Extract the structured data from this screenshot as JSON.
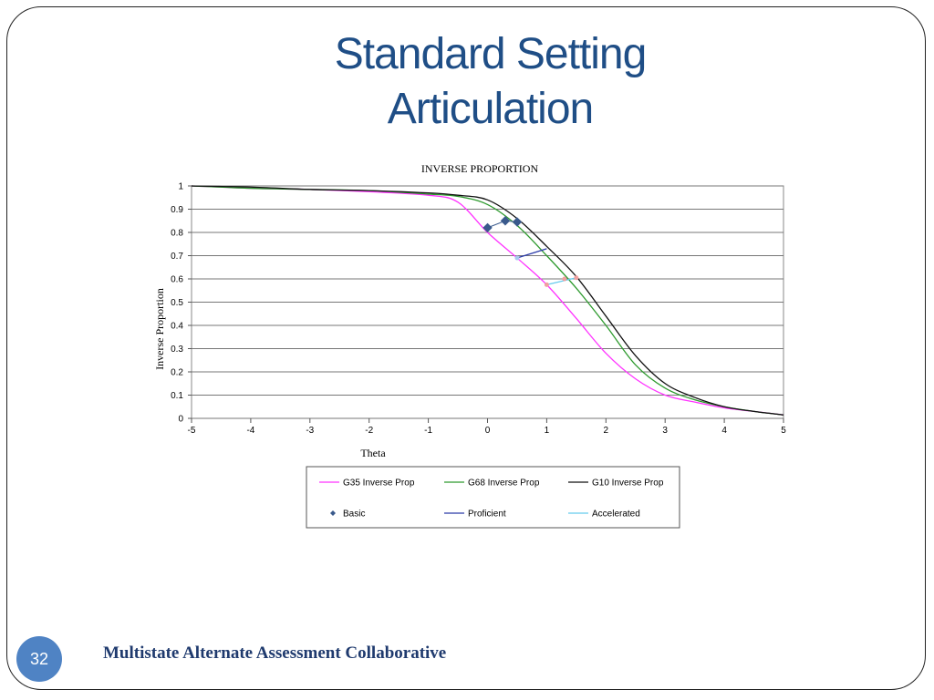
{
  "slide": {
    "title_line1": "Standard Setting",
    "title_line2": "Articulation",
    "page_number": "32",
    "footer": "Multistate Alternate Assessment Collaborative"
  },
  "colors": {
    "g35": "#ff33ff",
    "g68": "#2e9a2e",
    "g10": "#111111",
    "basic": "#3a5a8c",
    "proficient": "#2a3aa8",
    "accelerated": "#66ccee"
  },
  "chart_data": {
    "type": "line",
    "title": "INVERSE PROPORTION",
    "xlabel": "Theta",
    "ylabel": "Inverse Proportion",
    "xlim": [
      -5,
      5
    ],
    "ylim": [
      0,
      1
    ],
    "xticks": [
      "-5",
      "-4",
      "-3",
      "-2",
      "-1",
      "0",
      "1",
      "2",
      "3",
      "4",
      "5"
    ],
    "yticks": [
      "0",
      "0.1",
      "0.2",
      "0.3",
      "0.4",
      "0.5",
      "0.6",
      "0.7",
      "0.8",
      "0.9",
      "1"
    ],
    "grid": "horizontal",
    "legend_position": "bottom",
    "series": [
      {
        "name": "G35 Inverse Prop",
        "kind": "line",
        "x": [
          -5,
          -4,
          -3,
          -2,
          -1,
          -0.5,
          0,
          0.5,
          1,
          1.5,
          2,
          2.5,
          3,
          3.5,
          4,
          4.5,
          5
        ],
        "y": [
          1.0,
          0.99,
          0.985,
          0.975,
          0.96,
          0.93,
          0.8,
          0.69,
          0.575,
          0.43,
          0.28,
          0.17,
          0.1,
          0.07,
          0.045,
          0.03,
          0.015
        ]
      },
      {
        "name": "G68 Inverse Prop",
        "kind": "line",
        "x": [
          -5,
          -4,
          -3,
          -2,
          -1,
          -0.5,
          0,
          0.5,
          1,
          1.5,
          2,
          2.5,
          3,
          3.5,
          4,
          4.5,
          5
        ],
        "y": [
          1.0,
          0.99,
          0.985,
          0.98,
          0.965,
          0.955,
          0.92,
          0.83,
          0.7,
          0.56,
          0.4,
          0.23,
          0.13,
          0.08,
          0.05,
          0.03,
          0.015
        ]
      },
      {
        "name": "G10 Inverse Prop",
        "kind": "line",
        "x": [
          -5,
          -4,
          -3,
          -2,
          -1,
          -0.5,
          0,
          0.5,
          1,
          1.5,
          2,
          2.5,
          3,
          3.5,
          4,
          4.5,
          5
        ],
        "y": [
          1.0,
          0.995,
          0.985,
          0.98,
          0.97,
          0.96,
          0.94,
          0.86,
          0.74,
          0.61,
          0.44,
          0.27,
          0.15,
          0.09,
          0.05,
          0.03,
          0.015
        ]
      },
      {
        "name": "Basic",
        "kind": "marker",
        "x": [
          0.0,
          0.3,
          0.5
        ],
        "y": [
          0.82,
          0.85,
          0.845
        ]
      },
      {
        "name": "Proficient",
        "kind": "line",
        "x": [
          0.5,
          1.0
        ],
        "y": [
          0.69,
          0.73
        ]
      },
      {
        "name": "Accelerated",
        "kind": "line",
        "x": [
          1.0,
          1.5
        ],
        "y": [
          0.575,
          0.605
        ]
      }
    ],
    "markers": [
      {
        "x": 0.5,
        "y": 0.69,
        "color": "#a8c8ee"
      },
      {
        "x": 1.0,
        "y": 0.575,
        "color": "#f0a0a0"
      },
      {
        "x": 1.3,
        "y": 0.6,
        "color": "#f0a0a0"
      },
      {
        "x": 1.5,
        "y": 0.605,
        "color": "#f0a0a0"
      }
    ]
  }
}
